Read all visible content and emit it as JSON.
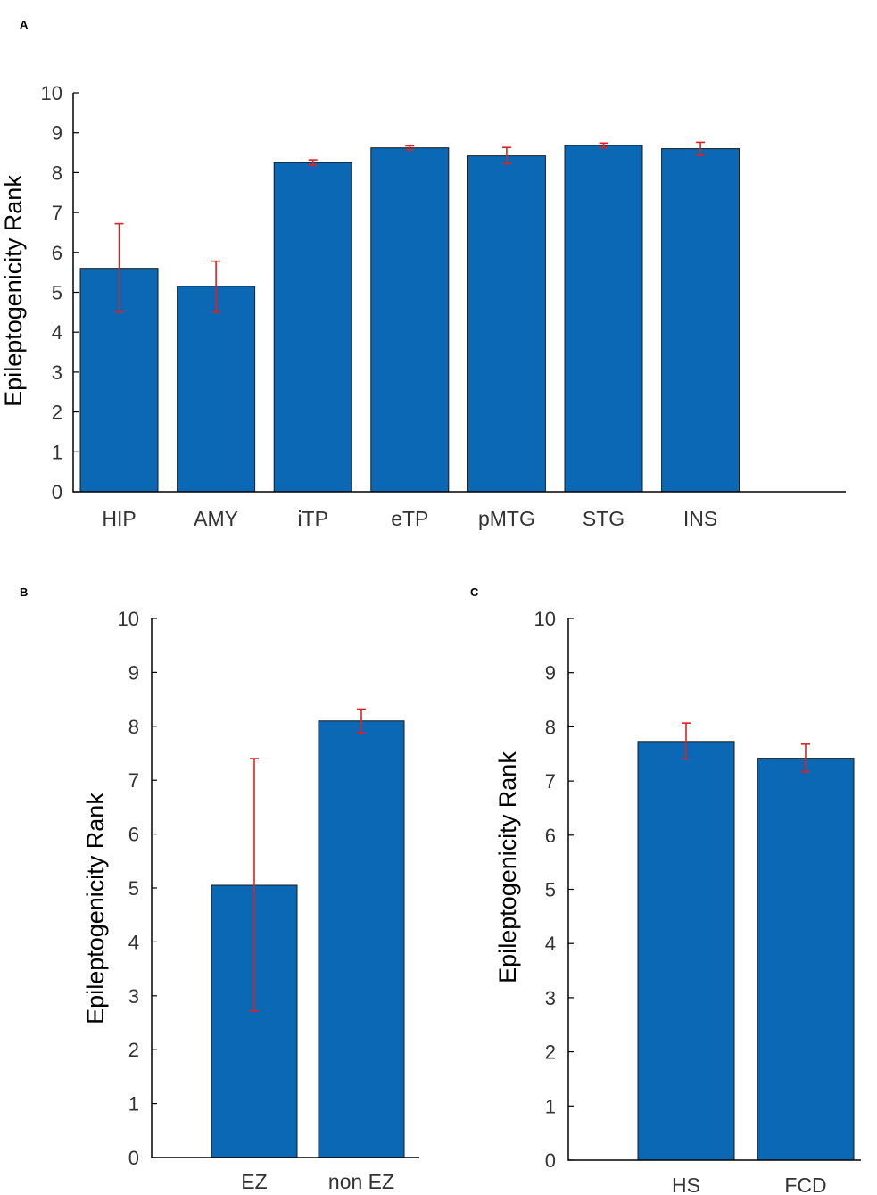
{
  "chart_data": [
    {
      "panel": "A",
      "type": "bar",
      "ylabel": "Epileptogenicity Rank",
      "ylim": [
        0,
        10
      ],
      "yticks": [
        "0",
        "1",
        "2",
        "3",
        "4",
        "5",
        "6",
        "7",
        "8",
        "9",
        "10"
      ],
      "categories": [
        "HIP",
        "AMY",
        "iTP",
        "eTP",
        "pMTG",
        "STG",
        "INS"
      ],
      "values": [
        5.6,
        5.15,
        8.25,
        8.62,
        8.42,
        8.68,
        8.6
      ],
      "error_low": [
        4.5,
        4.5,
        8.18,
        8.57,
        8.22,
        8.62,
        8.44
      ],
      "error_high": [
        6.72,
        5.78,
        8.32,
        8.67,
        8.63,
        8.74,
        8.76
      ],
      "bar_color": "#0b68b4",
      "error_color": "#e02020"
    },
    {
      "panel": "B",
      "type": "bar",
      "ylabel": "Epileptogenicity Rank",
      "ylim": [
        0,
        10
      ],
      "yticks": [
        "0",
        "1",
        "2",
        "3",
        "4",
        "5",
        "6",
        "7",
        "8",
        "9",
        "10"
      ],
      "categories": [
        "EZ",
        "non EZ"
      ],
      "values": [
        5.05,
        8.1
      ],
      "error_low": [
        2.72,
        7.88
      ],
      "error_high": [
        7.4,
        8.32
      ],
      "bar_color": "#0b68b4",
      "error_color": "#e02020"
    },
    {
      "panel": "C",
      "type": "bar",
      "ylabel": "Epileptogenicity Rank",
      "ylim": [
        0,
        10
      ],
      "yticks": [
        "0",
        "1",
        "2",
        "3",
        "4",
        "5",
        "6",
        "7",
        "8",
        "9",
        "10"
      ],
      "categories": [
        "HS",
        "FCD"
      ],
      "values": [
        7.73,
        7.42
      ],
      "error_low": [
        7.4,
        7.17
      ],
      "error_high": [
        8.07,
        7.68
      ],
      "bar_color": "#0b68b4",
      "error_color": "#e02020"
    }
  ]
}
